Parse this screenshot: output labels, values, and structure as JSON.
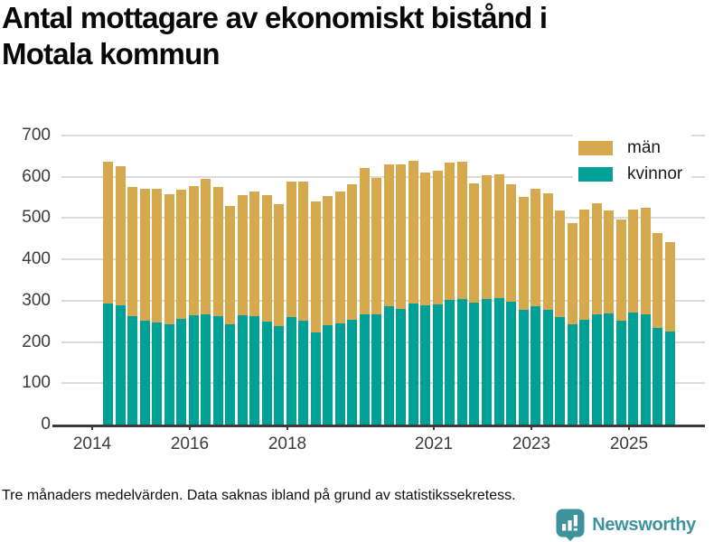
{
  "title_lines": [
    "Antal mottagare av ekonomiskt bistånd i",
    "Motala kommun"
  ],
  "footer": {
    "note": "Tre månaders medelvärden. Data saknas ibland på grund av statistikssekretess.",
    "brand": "Newsworthy"
  },
  "colors": {
    "men": "#d7a94f",
    "women": "#00a096",
    "brand_teal": "#3e929e",
    "grid": "#dbdbdb",
    "axis": "#3a3a3a"
  },
  "chart_data": {
    "type": "bar",
    "stacked": true,
    "title": "Antal mottagare av ekonomiskt bistånd i Motala kommun",
    "xlabel": "",
    "ylabel": "",
    "ylim": [
      0,
      700
    ],
    "yticks": [
      0,
      100,
      200,
      300,
      400,
      500,
      600,
      700
    ],
    "x_axis_year_ticks": [
      2014,
      2016,
      2018,
      2021,
      2023,
      2025
    ],
    "x_start_year": 2014,
    "grid": true,
    "legend_position": "top-right",
    "note": "Tre månaders medelvärden. Data saknas ibland på grund av statistikssekretess.",
    "categories": [
      "apr–jun 2014",
      "jul–sep 2014",
      "okt–dec 2014",
      "jan–mar 2015",
      "apr–jun 2015",
      "jul–sep 2015",
      "okt–dec 2015",
      "jan–mar 2016",
      "apr–jun 2016",
      "jul–sep 2016",
      "okt–dec 2016",
      "jan–mar 2017",
      "apr–jun 2017",
      "jul–sep 2017",
      "okt–dec 2017",
      "jan–mar 2018",
      "apr–jun 2018",
      "jul–sep 2018",
      "okt–dec 2018",
      "jan–mar 2019",
      "apr–jun 2019",
      "jul–sep 2019",
      "okt–dec 2019",
      "jan–mar 2020",
      "apr–jun 2020",
      "jul–sep 2020",
      "okt–dec 2020",
      "jan–mar 2021",
      "apr–jun 2021",
      "jul–sep 2021",
      "okt–dec 2021",
      "jan–mar 2022",
      "apr–jun 2022",
      "jul–sep 2022",
      "okt–dec 2022",
      "jan–mar 2023",
      "apr–jun 2023",
      "jul–sep 2023",
      "okt–dec 2023",
      "jan–mar 2024",
      "apr–jun 2024",
      "jul–sep 2024",
      "okt–dec 2024",
      "jan–mar 2025",
      "apr–jun 2025",
      "jul–sep 2025",
      "okt–dec 2025"
    ],
    "series": [
      {
        "name": "män",
        "color": "#d7a94f",
        "values": [
          344,
          336,
          314,
          319,
          325,
          315,
          313,
          313,
          328,
          314,
          286,
          292,
          302,
          307,
          296,
          328,
          337,
          317,
          314,
          318,
          330,
          355,
          330,
          344,
          349,
          344,
          321,
          323,
          332,
          332,
          289,
          299,
          300,
          286,
          274,
          286,
          282,
          258,
          246,
          267,
          271,
          248,
          245,
          249,
          259,
          229,
          216
        ]
      },
      {
        "name": "kvinnor",
        "color": "#00a096",
        "values": [
          293,
          289,
          262,
          251,
          247,
          243,
          255,
          265,
          268,
          262,
          243,
          264,
          262,
          249,
          238,
          260,
          251,
          224,
          240,
          246,
          253,
          266,
          268,
          286,
          280,
          294,
          289,
          291,
          302,
          305,
          296,
          304,
          307,
          297,
          278,
          286,
          278,
          260,
          242,
          254,
          266,
          270,
          252,
          271,
          266,
          235,
          225
        ]
      }
    ]
  }
}
